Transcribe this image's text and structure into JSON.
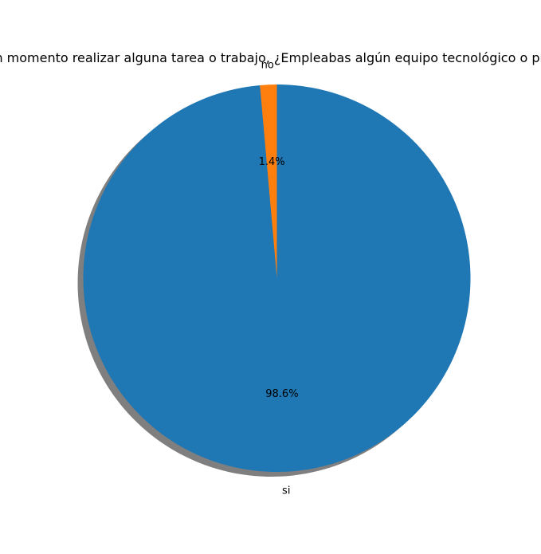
{
  "chart_data": {
    "type": "pie",
    "title": "¿En algún momento realizar alguna tarea o trabajo, ¿Empleabas algún equipo tecnológico o programa?",
    "slices": [
      {
        "label": "no",
        "value": 1.4,
        "pct_label": "1.4%",
        "color": "#ff7f0e"
      },
      {
        "label": "si",
        "value": 98.6,
        "pct_label": "98.6%",
        "color": "#1f77b4"
      }
    ],
    "start_angle": 90,
    "direction": "counterclockwise",
    "shadow": true
  }
}
